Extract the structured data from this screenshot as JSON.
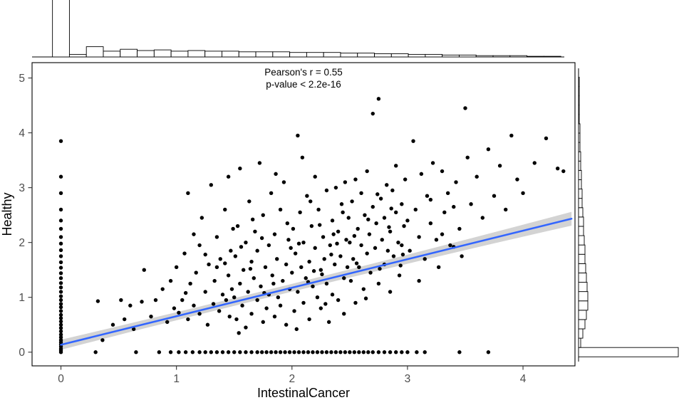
{
  "chart_data": {
    "type": "scatter",
    "title": "",
    "xlabel": "IntestinalCancer",
    "ylabel": "Healthy",
    "annotation_line1": "Pearson's r = 0.55",
    "annotation_line2": "p-value < 2.2e-16",
    "xlim": [
      -0.25,
      4.45
    ],
    "ylim": [
      -0.25,
      5.28
    ],
    "x_ticks": [
      0,
      1,
      2,
      3,
      4
    ],
    "x_tick_labels": [
      "0",
      "1",
      "2",
      "3",
      "4"
    ],
    "y_ticks": [
      0,
      1,
      2,
      3,
      4,
      5
    ],
    "y_tick_labels": [
      "0",
      "1",
      "2",
      "3",
      "4",
      "5"
    ],
    "grid": false,
    "legend": "none",
    "point_color": "#000000",
    "line_color": "#3366FF",
    "band_color": "#c8c8c8",
    "regression": {
      "intercept": 0.135,
      "slope": 0.52,
      "x_start": 0,
      "x_end": 4.42
    },
    "band": {
      "half_width_base": 0.07,
      "half_width_curve": 0.0075,
      "center": 1.7
    },
    "top_histogram": {
      "bin_width": 0.1467,
      "counts": [
        300,
        4,
        16,
        9,
        12,
        10,
        11,
        9,
        10,
        9,
        9,
        8,
        8,
        8,
        7,
        7,
        7,
        6,
        6,
        5,
        5,
        4,
        4,
        3,
        3,
        2,
        2,
        2,
        1,
        1
      ]
    },
    "right_histogram": {
      "bin_width": 0.17,
      "counts": [
        140,
        3,
        6,
        9,
        11,
        13,
        13,
        12,
        11,
        10,
        9,
        9,
        8,
        7,
        7,
        6,
        5,
        5,
        4,
        4,
        3,
        3,
        2,
        2,
        2,
        1,
        1,
        1,
        1,
        1
      ]
    },
    "points": [
      [
        0,
        0
      ],
      [
        0,
        0.03
      ],
      [
        0,
        0.06
      ],
      [
        0,
        0.1
      ],
      [
        0,
        0.14
      ],
      [
        0,
        0.18
      ],
      [
        0,
        0.22
      ],
      [
        0,
        0.27
      ],
      [
        0,
        0.32
      ],
      [
        0,
        0.38
      ],
      [
        0,
        0.44
      ],
      [
        0,
        0.5
      ],
      [
        0,
        0.56
      ],
      [
        0,
        0.62
      ],
      [
        0,
        0.68
      ],
      [
        0,
        0.75
      ],
      [
        0,
        0.82
      ],
      [
        0,
        0.88
      ],
      [
        0,
        0.95
      ],
      [
        0,
        1.02
      ],
      [
        0,
        1.1
      ],
      [
        0,
        1.18
      ],
      [
        0,
        1.26
      ],
      [
        0,
        1.35
      ],
      [
        0,
        1.44
      ],
      [
        0,
        1.54
      ],
      [
        0,
        1.64
      ],
      [
        0,
        1.75
      ],
      [
        0,
        1.86
      ],
      [
        0,
        1.98
      ],
      [
        0,
        2.1
      ],
      [
        0,
        2.25
      ],
      [
        0,
        2.4
      ],
      [
        0,
        2.6
      ],
      [
        0,
        2.9
      ],
      [
        0,
        3.2
      ],
      [
        0,
        3.85
      ],
      [
        0.3,
        0
      ],
      [
        0.65,
        0
      ],
      [
        0.85,
        0
      ],
      [
        0.95,
        0
      ],
      [
        1.02,
        0
      ],
      [
        1.08,
        0
      ],
      [
        1.14,
        0
      ],
      [
        1.2,
        0
      ],
      [
        1.25,
        0
      ],
      [
        1.3,
        0
      ],
      [
        1.35,
        0
      ],
      [
        1.4,
        0
      ],
      [
        1.45,
        0
      ],
      [
        1.5,
        0
      ],
      [
        1.55,
        0
      ],
      [
        1.6,
        0
      ],
      [
        1.65,
        0
      ],
      [
        1.7,
        0
      ],
      [
        1.74,
        0
      ],
      [
        1.78,
        0
      ],
      [
        1.82,
        0
      ],
      [
        1.86,
        0
      ],
      [
        1.9,
        0
      ],
      [
        1.94,
        0
      ],
      [
        1.98,
        0
      ],
      [
        2.02,
        0
      ],
      [
        2.06,
        0
      ],
      [
        2.1,
        0
      ],
      [
        2.14,
        0
      ],
      [
        2.18,
        0
      ],
      [
        2.22,
        0
      ],
      [
        2.26,
        0
      ],
      [
        2.3,
        0
      ],
      [
        2.34,
        0
      ],
      [
        2.38,
        0
      ],
      [
        2.42,
        0
      ],
      [
        2.46,
        0
      ],
      [
        2.5,
        0
      ],
      [
        2.54,
        0
      ],
      [
        2.58,
        0
      ],
      [
        2.62,
        0
      ],
      [
        2.66,
        0
      ],
      [
        2.7,
        0
      ],
      [
        2.75,
        0
      ],
      [
        2.8,
        0
      ],
      [
        2.85,
        0
      ],
      [
        2.9,
        0
      ],
      [
        2.95,
        0
      ],
      [
        3.0,
        0
      ],
      [
        3.08,
        0
      ],
      [
        3.15,
        0
      ],
      [
        3.45,
        0
      ],
      [
        3.7,
        0
      ],
      [
        0.32,
        0.93
      ],
      [
        0.36,
        0.22
      ],
      [
        0.45,
        0.5
      ],
      [
        0.52,
        0.95
      ],
      [
        0.55,
        0.6
      ],
      [
        0.6,
        0.85
      ],
      [
        0.63,
        0.42
      ],
      [
        0.7,
        0.92
      ],
      [
        0.72,
        1.5
      ],
      [
        0.78,
        0.65
      ],
      [
        0.82,
        0.95
      ],
      [
        0.88,
        1.15
      ],
      [
        0.92,
        0.55
      ],
      [
        0.95,
        1.3
      ],
      [
        0.98,
        0.8
      ],
      [
        1.0,
        1.55
      ],
      [
        1.02,
        0.72
      ],
      [
        1.05,
        0.95
      ],
      [
        1.07,
        1.8
      ],
      [
        1.1,
        0.6
      ],
      [
        1.1,
        2.9
      ],
      [
        1.12,
        1.25
      ],
      [
        1.15,
        0.85
      ],
      [
        1.17,
        1.45
      ],
      [
        1.2,
        0.7
      ],
      [
        1.2,
        1.95
      ],
      [
        1.22,
        2.45
      ],
      [
        1.25,
        1.1
      ],
      [
        1.27,
        0.5
      ],
      [
        1.28,
        1.6
      ],
      [
        1.3,
        3.05
      ],
      [
        1.32,
        0.88
      ],
      [
        1.33,
        1.3
      ],
      [
        1.35,
        2.1
      ],
      [
        1.37,
        0.75
      ],
      [
        1.38,
        1.7
      ],
      [
        1.4,
        1.05
      ],
      [
        1.42,
        2.6
      ],
      [
        1.43,
        0.95
      ],
      [
        1.45,
        1.4
      ],
      [
        1.46,
        0.65
      ],
      [
        1.47,
        1.85
      ],
      [
        1.48,
        1.15
      ],
      [
        1.49,
        2.25
      ],
      [
        1.35,
        1.55
      ],
      [
        1.25,
        1.78
      ],
      [
        1.15,
        2.15
      ],
      [
        1.45,
        3.2
      ],
      [
        1.42,
        1.62
      ],
      [
        1.08,
        1.08
      ],
      [
        1.5,
        1.0
      ],
      [
        1.51,
        1.75
      ],
      [
        1.52,
        0.6
      ],
      [
        1.53,
        2.3
      ],
      [
        1.55,
        1.25
      ],
      [
        1.55,
        3.35
      ],
      [
        1.57,
        0.85
      ],
      [
        1.58,
        1.5
      ],
      [
        1.6,
        2.0
      ],
      [
        1.6,
        0.45
      ],
      [
        1.62,
        1.1
      ],
      [
        1.63,
        2.75
      ],
      [
        1.65,
        1.65
      ],
      [
        1.65,
        0.7
      ],
      [
        1.67,
        1.35
      ],
      [
        1.68,
        2.2
      ],
      [
        1.7,
        0.95
      ],
      [
        1.7,
        1.85
      ],
      [
        1.72,
        3.45
      ],
      [
        1.73,
        1.2
      ],
      [
        1.75,
        0.55
      ],
      [
        1.75,
        2.5
      ],
      [
        1.77,
        1.55
      ],
      [
        1.78,
        0.8
      ],
      [
        1.8,
        1.95
      ],
      [
        1.8,
        1.05
      ],
      [
        1.82,
        2.9
      ],
      [
        1.83,
        1.4
      ],
      [
        1.85,
        0.65
      ],
      [
        1.85,
        2.15
      ],
      [
        1.87,
        1.7
      ],
      [
        1.88,
        1.0
      ],
      [
        1.9,
        2.6
      ],
      [
        1.9,
        0.85
      ],
      [
        1.92,
        1.3
      ],
      [
        1.93,
        3.1
      ],
      [
        1.95,
        1.6
      ],
      [
        1.95,
        0.5
      ],
      [
        1.97,
        2.05
      ],
      [
        1.98,
        1.15
      ],
      [
        1.99,
        1.9
      ],
      [
        1.56,
        1.92
      ],
      [
        1.66,
        2.42
      ],
      [
        1.76,
        1.08
      ],
      [
        1.86,
        3.25
      ],
      [
        1.96,
        2.35
      ],
      [
        1.54,
        0.35
      ],
      [
        1.64,
        1.52
      ],
      [
        1.74,
        2.08
      ],
      [
        1.84,
        1.25
      ],
      [
        2.0,
        1.45
      ],
      [
        2.01,
        2.25
      ],
      [
        2.02,
        0.75
      ],
      [
        2.03,
        1.8
      ],
      [
        2.05,
        3.95
      ],
      [
        2.05,
        1.1
      ],
      [
        2.07,
        2.55
      ],
      [
        2.08,
        1.55
      ],
      [
        2.1,
        0.9
      ],
      [
        2.1,
        2.0
      ],
      [
        2.12,
        1.35
      ],
      [
        2.13,
        2.85
      ],
      [
        2.15,
        1.65
      ],
      [
        2.15,
        0.6
      ],
      [
        2.17,
        2.3
      ],
      [
        2.18,
        1.2
      ],
      [
        2.2,
        1.9
      ],
      [
        2.2,
        3.2
      ],
      [
        2.22,
        1.0
      ],
      [
        2.23,
        2.6
      ],
      [
        2.25,
        1.5
      ],
      [
        2.25,
        0.8
      ],
      [
        2.27,
        2.1
      ],
      [
        2.28,
        1.7
      ],
      [
        2.3,
        2.95
      ],
      [
        2.3,
        1.25
      ],
      [
        2.32,
        0.55
      ],
      [
        2.33,
        1.95
      ],
      [
        2.35,
        2.4
      ],
      [
        2.35,
        1.05
      ],
      [
        2.37,
        1.6
      ],
      [
        2.38,
        3.0
      ],
      [
        2.4,
        2.2
      ],
      [
        2.4,
        0.95
      ],
      [
        2.42,
        1.75
      ],
      [
        2.43,
        2.7
      ],
      [
        2.45,
        1.35
      ],
      [
        2.45,
        0.7
      ],
      [
        2.47,
        2.05
      ],
      [
        2.48,
        1.55
      ],
      [
        2.49,
        2.45
      ],
      [
        2.06,
        1.98
      ],
      [
        2.16,
        2.75
      ],
      [
        2.26,
        1.42
      ],
      [
        2.36,
        2.15
      ],
      [
        2.46,
        3.1
      ],
      [
        2.04,
        0.42
      ],
      [
        2.14,
        1.28
      ],
      [
        2.24,
        2.32
      ],
      [
        2.34,
        1.78
      ],
      [
        2.44,
        2.55
      ],
      [
        2.09,
        3.55
      ],
      [
        2.19,
        1.48
      ],
      [
        2.29,
        0.88
      ],
      [
        2.39,
        1.98
      ],
      [
        2.5,
        2.0
      ],
      [
        2.51,
        1.3
      ],
      [
        2.52,
        2.75
      ],
      [
        2.53,
        1.7
      ],
      [
        2.55,
        3.15
      ],
      [
        2.55,
        0.9
      ],
      [
        2.57,
        2.25
      ],
      [
        2.58,
        1.55
      ],
      [
        2.6,
        2.9
      ],
      [
        2.6,
        1.95
      ],
      [
        2.62,
        1.15
      ],
      [
        2.63,
        2.5
      ],
      [
        2.65,
        1.8
      ],
      [
        2.65,
        3.3
      ],
      [
        2.67,
        2.15
      ],
      [
        2.68,
        1.45
      ],
      [
        2.7,
        2.65
      ],
      [
        2.7,
        4.35
      ],
      [
        2.72,
        1.9
      ],
      [
        2.73,
        2.35
      ],
      [
        2.75,
        4.62
      ],
      [
        2.75,
        1.25
      ],
      [
        2.77,
        2.8
      ],
      [
        2.78,
        2.05
      ],
      [
        2.8,
        1.6
      ],
      [
        2.8,
        2.45
      ],
      [
        2.82,
        3.05
      ],
      [
        2.83,
        1.85
      ],
      [
        2.85,
        2.2
      ],
      [
        2.85,
        1.1
      ],
      [
        2.87,
        2.95
      ],
      [
        2.88,
        1.75
      ],
      [
        2.9,
        2.55
      ],
      [
        2.9,
        3.4
      ],
      [
        2.92,
        2.0
      ],
      [
        2.93,
        1.4
      ],
      [
        2.95,
        2.7
      ],
      [
        2.95,
        1.95
      ],
      [
        2.97,
        2.3
      ],
      [
        2.98,
        3.15
      ],
      [
        2.56,
        1.62
      ],
      [
        2.66,
        2.42
      ],
      [
        2.76,
        1.52
      ],
      [
        2.86,
        2.62
      ],
      [
        2.96,
        1.78
      ],
      [
        2.54,
        2.12
      ],
      [
        2.64,
        0.98
      ],
      [
        2.74,
        2.88
      ],
      [
        2.84,
        2.28
      ],
      [
        2.94,
        1.58
      ],
      [
        3.0,
        2.4
      ],
      [
        3.02,
        1.85
      ],
      [
        3.05,
        3.85
      ],
      [
        3.07,
        2.6
      ],
      [
        3.1,
        2.1
      ],
      [
        3.12,
        3.25
      ],
      [
        3.15,
        1.7
      ],
      [
        3.17,
        2.85
      ],
      [
        3.2,
        2.35
      ],
      [
        3.22,
        3.45
      ],
      [
        3.25,
        2.05
      ],
      [
        3.27,
        1.55
      ],
      [
        3.3,
        3.3
      ],
      [
        3.32,
        2.55
      ],
      [
        3.35,
        2.9
      ],
      [
        3.37,
        1.95
      ],
      [
        3.4,
        2.65
      ],
      [
        3.42,
        3.1
      ],
      [
        3.45,
        2.25
      ],
      [
        3.47,
        1.75
      ],
      [
        3.5,
        4.45
      ],
      [
        3.1,
        1.3
      ],
      [
        3.2,
        2.78
      ],
      [
        3.3,
        2.15
      ],
      [
        3.4,
        1.92
      ],
      [
        3.52,
        3.55
      ],
      [
        3.55,
        2.7
      ],
      [
        3.6,
        3.2
      ],
      [
        3.65,
        2.45
      ],
      [
        3.7,
        3.7
      ],
      [
        3.75,
        2.85
      ],
      [
        3.8,
        3.4
      ],
      [
        3.85,
        2.6
      ],
      [
        3.9,
        3.95
      ],
      [
        3.95,
        3.15
      ],
      [
        4.0,
        2.9
      ],
      [
        4.1,
        3.45
      ],
      [
        4.2,
        3.9
      ],
      [
        4.3,
        3.35
      ],
      [
        4.35,
        3.3
      ]
    ]
  }
}
